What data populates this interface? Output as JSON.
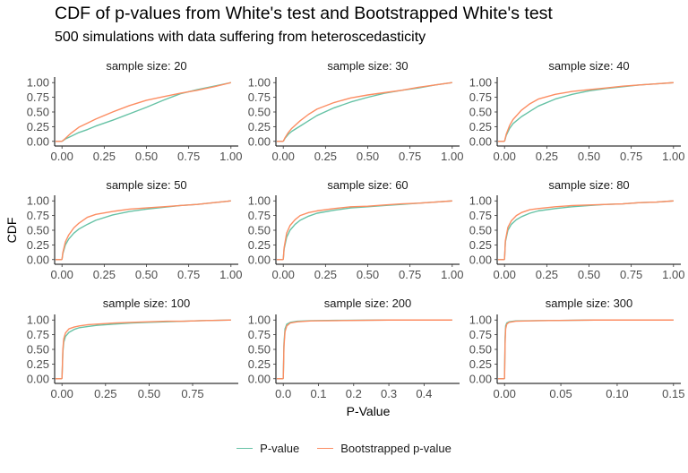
{
  "chart_data": {
    "type": "line",
    "title": "CDF of p-values from White's test and Bootstrapped White's test",
    "subtitle": "500 simulations with data suffering from heteroscedasticity",
    "xlabel": "P-Value",
    "ylabel": "CDF",
    "legend_position": "bottom",
    "grid": false,
    "series_names": [
      "P-value",
      "Bootstrapped p-value"
    ],
    "series_colors": [
      "#66c2a5",
      "#fc8d62"
    ],
    "y_ticks": [
      "0.00",
      "0.25",
      "0.50",
      "0.75",
      "1.00"
    ],
    "ylim": [
      0,
      1
    ],
    "panels": [
      {
        "label": "sample size: 20",
        "xlim": [
          0,
          1
        ],
        "x_ticks": [
          0,
          0.25,
          0.5,
          0.75,
          1.0
        ],
        "tick_labels": [
          "0.00",
          "0.25",
          "0.50",
          "0.75",
          "1.00"
        ],
        "series": [
          {
            "name": "P-value",
            "x": [
              0,
              0.02,
              0.05,
              0.1,
              0.15,
              0.2,
              0.3,
              0.4,
              0.5,
              0.6,
              0.7,
              0.8,
              0.9,
              1.0
            ],
            "y": [
              0,
              0.04,
              0.08,
              0.15,
              0.2,
              0.26,
              0.36,
              0.47,
              0.58,
              0.7,
              0.81,
              0.88,
              0.94,
              1.0
            ]
          },
          {
            "name": "Bootstrapped p-value",
            "x": [
              0,
              0.02,
              0.05,
              0.1,
              0.15,
              0.2,
              0.3,
              0.4,
              0.5,
              0.6,
              0.7,
              0.8,
              0.9,
              1.0
            ],
            "y": [
              0,
              0.05,
              0.13,
              0.24,
              0.31,
              0.38,
              0.5,
              0.61,
              0.7,
              0.76,
              0.82,
              0.87,
              0.93,
              1.0
            ]
          }
        ]
      },
      {
        "label": "sample size: 30",
        "xlim": [
          0,
          1
        ],
        "x_ticks": [
          0,
          0.25,
          0.5,
          0.75,
          1.0
        ],
        "tick_labels": [
          "0.00",
          "0.25",
          "0.50",
          "0.75",
          "1.00"
        ],
        "series": [
          {
            "name": "P-value",
            "x": [
              0,
              0.01,
              0.03,
              0.05,
              0.1,
              0.15,
              0.2,
              0.3,
              0.4,
              0.5,
              0.6,
              0.7,
              0.8,
              0.9,
              1.0
            ],
            "y": [
              0,
              0.05,
              0.12,
              0.17,
              0.26,
              0.35,
              0.44,
              0.57,
              0.67,
              0.75,
              0.82,
              0.87,
              0.91,
              0.96,
              1.0
            ]
          },
          {
            "name": "Bootstrapped p-value",
            "x": [
              0,
              0.01,
              0.03,
              0.05,
              0.1,
              0.15,
              0.2,
              0.3,
              0.4,
              0.5,
              0.6,
              0.7,
              0.8,
              0.9,
              1.0
            ],
            "y": [
              0,
              0.06,
              0.15,
              0.22,
              0.35,
              0.46,
              0.55,
              0.66,
              0.74,
              0.79,
              0.83,
              0.87,
              0.92,
              0.96,
              1.0
            ]
          }
        ]
      },
      {
        "label": "sample size: 40",
        "xlim": [
          0,
          1
        ],
        "x_ticks": [
          0,
          0.25,
          0.5,
          0.75,
          1.0
        ],
        "tick_labels": [
          "0.00",
          "0.25",
          "0.50",
          "0.75",
          "1.00"
        ],
        "series": [
          {
            "name": "P-value",
            "x": [
              0,
              0.01,
              0.03,
              0.05,
              0.1,
              0.15,
              0.2,
              0.3,
              0.4,
              0.5,
              0.6,
              0.7,
              0.8,
              0.9,
              1.0
            ],
            "y": [
              0,
              0.1,
              0.22,
              0.3,
              0.42,
              0.51,
              0.6,
              0.72,
              0.8,
              0.86,
              0.9,
              0.93,
              0.96,
              0.98,
              1.0
            ]
          },
          {
            "name": "Bootstrapped p-value",
            "x": [
              0,
              0.01,
              0.03,
              0.05,
              0.1,
              0.15,
              0.2,
              0.3,
              0.4,
              0.5,
              0.6,
              0.7,
              0.8,
              0.9,
              1.0
            ],
            "y": [
              0,
              0.12,
              0.27,
              0.37,
              0.53,
              0.64,
              0.72,
              0.8,
              0.85,
              0.88,
              0.91,
              0.94,
              0.96,
              0.98,
              1.0
            ]
          }
        ]
      },
      {
        "label": "sample size: 50",
        "xlim": [
          0,
          1
        ],
        "x_ticks": [
          0,
          0.25,
          0.5,
          0.75,
          1.0
        ],
        "tick_labels": [
          "0.00",
          "0.25",
          "0.50",
          "0.75",
          "1.00"
        ],
        "series": [
          {
            "name": "P-value",
            "x": [
              0,
              0.005,
              0.02,
              0.04,
              0.07,
              0.1,
              0.15,
              0.2,
              0.3,
              0.4,
              0.5,
              0.6,
              0.7,
              0.8,
              0.9,
              1.0
            ],
            "y": [
              0,
              0.1,
              0.25,
              0.35,
              0.45,
              0.52,
              0.6,
              0.67,
              0.76,
              0.82,
              0.86,
              0.89,
              0.92,
              0.94,
              0.97,
              1.0
            ]
          },
          {
            "name": "Bootstrapped p-value",
            "x": [
              0,
              0.005,
              0.02,
              0.04,
              0.07,
              0.1,
              0.15,
              0.2,
              0.3,
              0.4,
              0.5,
              0.6,
              0.7,
              0.8,
              0.9,
              1.0
            ],
            "y": [
              0,
              0.12,
              0.3,
              0.42,
              0.54,
              0.62,
              0.72,
              0.77,
              0.82,
              0.86,
              0.88,
              0.9,
              0.92,
              0.94,
              0.97,
              1.0
            ]
          }
        ]
      },
      {
        "label": "sample size: 60",
        "xlim": [
          0,
          1
        ],
        "x_ticks": [
          0,
          0.25,
          0.5,
          0.75,
          1.0
        ],
        "tick_labels": [
          "0.00",
          "0.25",
          "0.50",
          "0.75",
          "1.00"
        ],
        "series": [
          {
            "name": "P-value",
            "x": [
              0,
              0.005,
              0.02,
              0.04,
              0.07,
              0.1,
              0.15,
              0.2,
              0.3,
              0.4,
              0.5,
              0.6,
              0.7,
              0.8,
              0.9,
              1.0
            ],
            "y": [
              0,
              0.18,
              0.38,
              0.5,
              0.6,
              0.67,
              0.74,
              0.79,
              0.84,
              0.88,
              0.9,
              0.92,
              0.94,
              0.96,
              0.98,
              1.0
            ]
          },
          {
            "name": "Bootstrapped p-value",
            "x": [
              0,
              0.005,
              0.02,
              0.04,
              0.07,
              0.1,
              0.15,
              0.2,
              0.3,
              0.4,
              0.5,
              0.6,
              0.7,
              0.8,
              0.9,
              1.0
            ],
            "y": [
              0,
              0.2,
              0.45,
              0.58,
              0.68,
              0.75,
              0.8,
              0.83,
              0.87,
              0.9,
              0.91,
              0.93,
              0.95,
              0.96,
              0.98,
              1.0
            ]
          }
        ]
      },
      {
        "label": "sample size: 80",
        "xlim": [
          0,
          1
        ],
        "x_ticks": [
          0,
          0.25,
          0.5,
          0.75,
          1.0
        ],
        "tick_labels": [
          "0.00",
          "0.25",
          "0.50",
          "0.75",
          "1.00"
        ],
        "series": [
          {
            "name": "P-value",
            "x": [
              0,
              0.005,
              0.02,
              0.04,
              0.07,
              0.1,
              0.15,
              0.2,
              0.3,
              0.4,
              0.5,
              0.6,
              0.7,
              0.8,
              0.9,
              1.0
            ],
            "y": [
              0,
              0.3,
              0.5,
              0.6,
              0.68,
              0.73,
              0.79,
              0.83,
              0.87,
              0.9,
              0.92,
              0.94,
              0.95,
              0.97,
              0.98,
              1.0
            ]
          },
          {
            "name": "Bootstrapped p-value",
            "x": [
              0,
              0.005,
              0.02,
              0.04,
              0.07,
              0.1,
              0.15,
              0.2,
              0.3,
              0.4,
              0.5,
              0.6,
              0.7,
              0.8,
              0.9,
              1.0
            ],
            "y": [
              0,
              0.32,
              0.55,
              0.66,
              0.75,
              0.8,
              0.85,
              0.87,
              0.9,
              0.92,
              0.93,
              0.94,
              0.95,
              0.97,
              0.98,
              1.0
            ]
          }
        ]
      },
      {
        "label": "sample size: 100",
        "xlim": [
          0,
          0.97
        ],
        "x_ticks": [
          0,
          0.25,
          0.5,
          0.75
        ],
        "tick_labels": [
          "0.00",
          "0.25",
          "0.50",
          "0.75"
        ],
        "series": [
          {
            "name": "P-value",
            "x": [
              0,
              0.005,
              0.01,
              0.02,
              0.04,
              0.07,
              0.1,
              0.15,
              0.2,
              0.3,
              0.4,
              0.5,
              0.6,
              0.7,
              0.8,
              0.97
            ],
            "y": [
              0,
              0.45,
              0.62,
              0.72,
              0.79,
              0.84,
              0.87,
              0.89,
              0.91,
              0.93,
              0.95,
              0.96,
              0.97,
              0.98,
              0.99,
              1.0
            ]
          },
          {
            "name": "Bootstrapped p-value",
            "x": [
              0,
              0.005,
              0.01,
              0.02,
              0.04,
              0.07,
              0.1,
              0.15,
              0.2,
              0.3,
              0.4,
              0.5,
              0.6,
              0.7,
              0.8,
              0.97
            ],
            "y": [
              0,
              0.5,
              0.68,
              0.78,
              0.85,
              0.88,
              0.9,
              0.92,
              0.93,
              0.95,
              0.96,
              0.97,
              0.98,
              0.98,
              0.99,
              1.0
            ]
          }
        ]
      },
      {
        "label": "sample size: 200",
        "xlim": [
          0,
          0.48
        ],
        "x_ticks": [
          0,
          0.1,
          0.2,
          0.3,
          0.4
        ],
        "tick_labels": [
          "0.0",
          "0.1",
          "0.2",
          "0.3",
          "0.4"
        ],
        "series": [
          {
            "name": "P-value",
            "x": [
              0,
              0.002,
              0.005,
              0.01,
              0.02,
              0.04,
              0.08,
              0.15,
              0.3,
              0.48
            ],
            "y": [
              0,
              0.6,
              0.85,
              0.93,
              0.96,
              0.98,
              0.99,
              0.995,
              1.0,
              1.0
            ]
          },
          {
            "name": "Bootstrapped p-value",
            "x": [
              0,
              0.002,
              0.005,
              0.01,
              0.02,
              0.04,
              0.08,
              0.15,
              0.3,
              0.48
            ],
            "y": [
              0,
              0.55,
              0.8,
              0.9,
              0.95,
              0.97,
              0.985,
              0.99,
              1.0,
              1.0
            ]
          }
        ]
      },
      {
        "label": "sample size: 300",
        "xlim": [
          0,
          0.15
        ],
        "x_ticks": [
          0,
          0.05,
          0.1,
          0.15
        ],
        "tick_labels": [
          "0.00",
          "0.05",
          "0.10",
          "0.15"
        ],
        "series": [
          {
            "name": "P-value",
            "x": [
              0,
              0.0005,
              0.001,
              0.002,
              0.004,
              0.01,
              0.03,
              0.08,
              0.15
            ],
            "y": [
              0,
              0.7,
              0.9,
              0.95,
              0.97,
              0.985,
              0.99,
              1.0,
              1.0
            ]
          },
          {
            "name": "Bootstrapped p-value",
            "x": [
              0,
              0.0005,
              0.001,
              0.002,
              0.004,
              0.01,
              0.03,
              0.08,
              0.15
            ],
            "y": [
              0,
              0.6,
              0.85,
              0.93,
              0.96,
              0.98,
              0.99,
              1.0,
              1.0
            ]
          }
        ]
      }
    ]
  }
}
